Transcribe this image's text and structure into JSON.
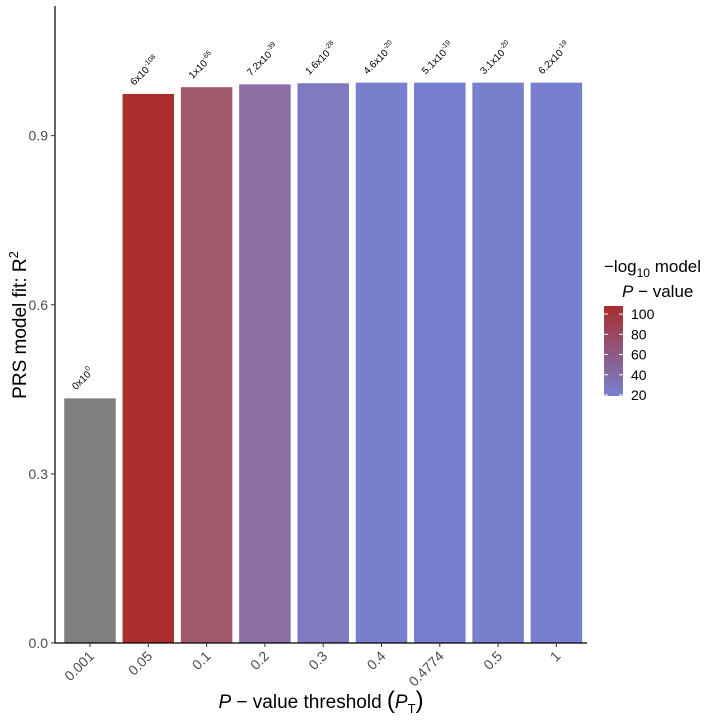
{
  "chart_data": {
    "type": "bar",
    "categories": [
      "0.001",
      "0.05",
      "0.1",
      "0.2",
      "0.3",
      "0.4",
      "0.4774",
      "0.5",
      "1"
    ],
    "values": [
      0.434,
      0.974,
      0.986,
      0.991,
      0.993,
      0.994,
      0.994,
      0.994,
      0.994
    ],
    "neg_log10_p": [
      0,
      108,
      65,
      39,
      28,
      20,
      19,
      20,
      19
    ],
    "p_value_labels": [
      {
        "mantissa": "0x10",
        "exp": "0"
      },
      {
        "mantissa": "6x10",
        "exp": "-108"
      },
      {
        "mantissa": "1x10",
        "exp": "-65"
      },
      {
        "mantissa": "7.2x10",
        "exp": "-39"
      },
      {
        "mantissa": "1.6x10",
        "exp": "-28"
      },
      {
        "mantissa": "4.6x10",
        "exp": "-20"
      },
      {
        "mantissa": "5.1x10",
        "exp": "-19"
      },
      {
        "mantissa": "3.1x10",
        "exp": "-20"
      },
      {
        "mantissa": "6.2x10",
        "exp": "-19"
      }
    ],
    "bar_colors": [
      "#7f7f7f",
      "#a92e2c",
      "#a05a6c",
      "#8d6fa5",
      "#807ac0",
      "#787fcd",
      "#7780d0",
      "#787fcd",
      "#7780d0"
    ],
    "ylim": [
      0,
      1.13
    ],
    "yticks": [
      "0.0",
      "0.3",
      "0.6",
      "0.9"
    ],
    "ytick_values": [
      0.0,
      0.3,
      0.6,
      0.9
    ],
    "ylabel": {
      "prefix": "PRS model fit:  R",
      "sup": "2"
    },
    "xlabel": {
      "italic": "P",
      "middle": " − value threshold ",
      "paren_open": "(",
      "pt_italic": "P",
      "pt_sub": "T",
      "paren_close": ")"
    },
    "grid": false,
    "legend": {
      "placement": "right",
      "title_line1": {
        "prefix": "−log",
        "sub": "10",
        "suffix": " model"
      },
      "title_line2": {
        "italic": "P",
        "suffix": " − value"
      },
      "ticks": [
        "100",
        "80",
        "60",
        "40",
        "20"
      ],
      "tick_values": [
        100,
        80,
        60,
        40,
        20
      ],
      "range": [
        19,
        108
      ],
      "color_high": "#a92e2c",
      "color_low": "#7780d0"
    }
  }
}
